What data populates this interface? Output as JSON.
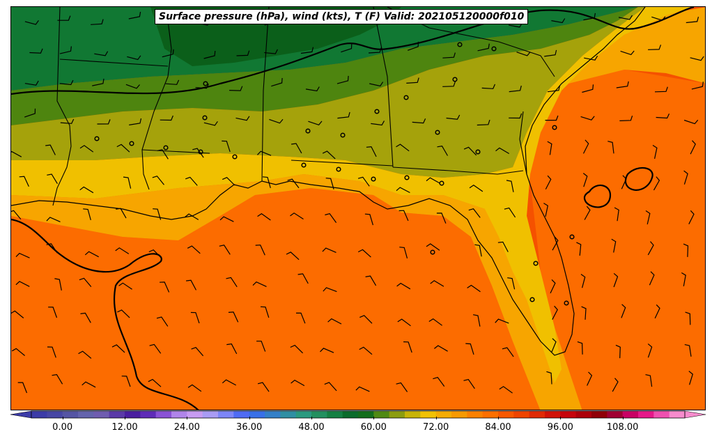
{
  "title": "Surface pressure (hPa), wind (kts), T (F) Valid: 202105120000f010",
  "colorbar": {
    "min": -6,
    "max": 120,
    "step": 3,
    "tick_labels": [
      "0.00",
      "12.00",
      "24.00",
      "36.00",
      "48.00",
      "60.00",
      "72.00",
      "84.00",
      "96.00",
      "108.00"
    ],
    "tick_values": [
      0,
      12,
      24,
      36,
      48,
      60,
      72,
      84,
      96,
      108
    ],
    "colors": [
      "#3c3ca8",
      "#4747a5",
      "#5555a4",
      "#6464ad",
      "#6f5db0",
      "#5a3aa8",
      "#4a1fa0",
      "#5f2cb8",
      "#8a52d6",
      "#b085ea",
      "#c79cf2",
      "#a99cf5",
      "#7d86f8",
      "#4f6cf5",
      "#3870e8",
      "#3480c8",
      "#2f8fa4",
      "#2a9a80",
      "#239060",
      "#158043",
      "#0b6c2c",
      "#136e1c",
      "#4f8a14",
      "#8c9d10",
      "#c7b408",
      "#f1c205",
      "#f5ac04",
      "#f79a02",
      "#fb8101",
      "#fd6f00",
      "#f85800",
      "#ef4400",
      "#e02a06",
      "#d11208",
      "#c6040c",
      "#ac000a",
      "#900008",
      "#a00033",
      "#c80064",
      "#e6188a",
      "#f050b0",
      "#f78ccd"
    ]
  },
  "map": {
    "fill_levels": {
      "dark_green": "#0b5f1a",
      "green": "#117833",
      "olive_green": "#4e850f",
      "olive": "#a5a20b",
      "yellow": "#f0c000",
      "light_orange": "#f7a500",
      "orange": "#fc6c00",
      "deep_orange": "#f55100",
      "red_orange": "#ea3a02"
    }
  }
}
